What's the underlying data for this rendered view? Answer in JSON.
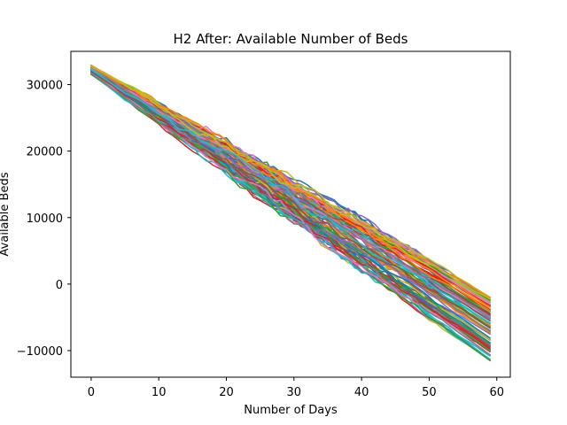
{
  "chart_data": {
    "type": "line",
    "title": "H2 After: Available Number of Beds",
    "xlabel": "Number of Days",
    "ylabel": "Available Beds",
    "xlim": [
      -3,
      62
    ],
    "ylim": [
      -14000,
      35000
    ],
    "x_ticks": [
      0,
      10,
      20,
      30,
      40,
      50,
      60
    ],
    "y_ticks": [
      -10000,
      0,
      10000,
      20000,
      30000
    ],
    "grid": false,
    "legend": "none",
    "series_count": 100,
    "series_x_range": [
      0,
      59
    ],
    "series_start_range": [
      31500,
      32900
    ],
    "series_end_range": [
      -11500,
      -2000
    ],
    "color_cycle": [
      "#1f77b4",
      "#ff7f0e",
      "#2ca02c",
      "#d62728",
      "#9467bd",
      "#8c564b",
      "#e377c2",
      "#7f7f7f",
      "#bcbd22",
      "#17becf"
    ],
    "representative_series": [
      {
        "x": [
          0,
          10,
          20,
          30,
          40,
          50,
          59
        ],
        "values": [
          32900,
          28000,
          22800,
          16200,
          9200,
          1800,
          -2000
        ]
      },
      {
        "x": [
          0,
          10,
          20,
          30,
          40,
          50,
          59
        ],
        "values": [
          32200,
          26000,
          19500,
          12500,
          5500,
          -1500,
          -6500
        ]
      },
      {
        "x": [
          0,
          10,
          20,
          30,
          40,
          50,
          59
        ],
        "values": [
          31500,
          24500,
          16500,
          9500,
          2000,
          -5000,
          -11500
        ]
      }
    ]
  }
}
